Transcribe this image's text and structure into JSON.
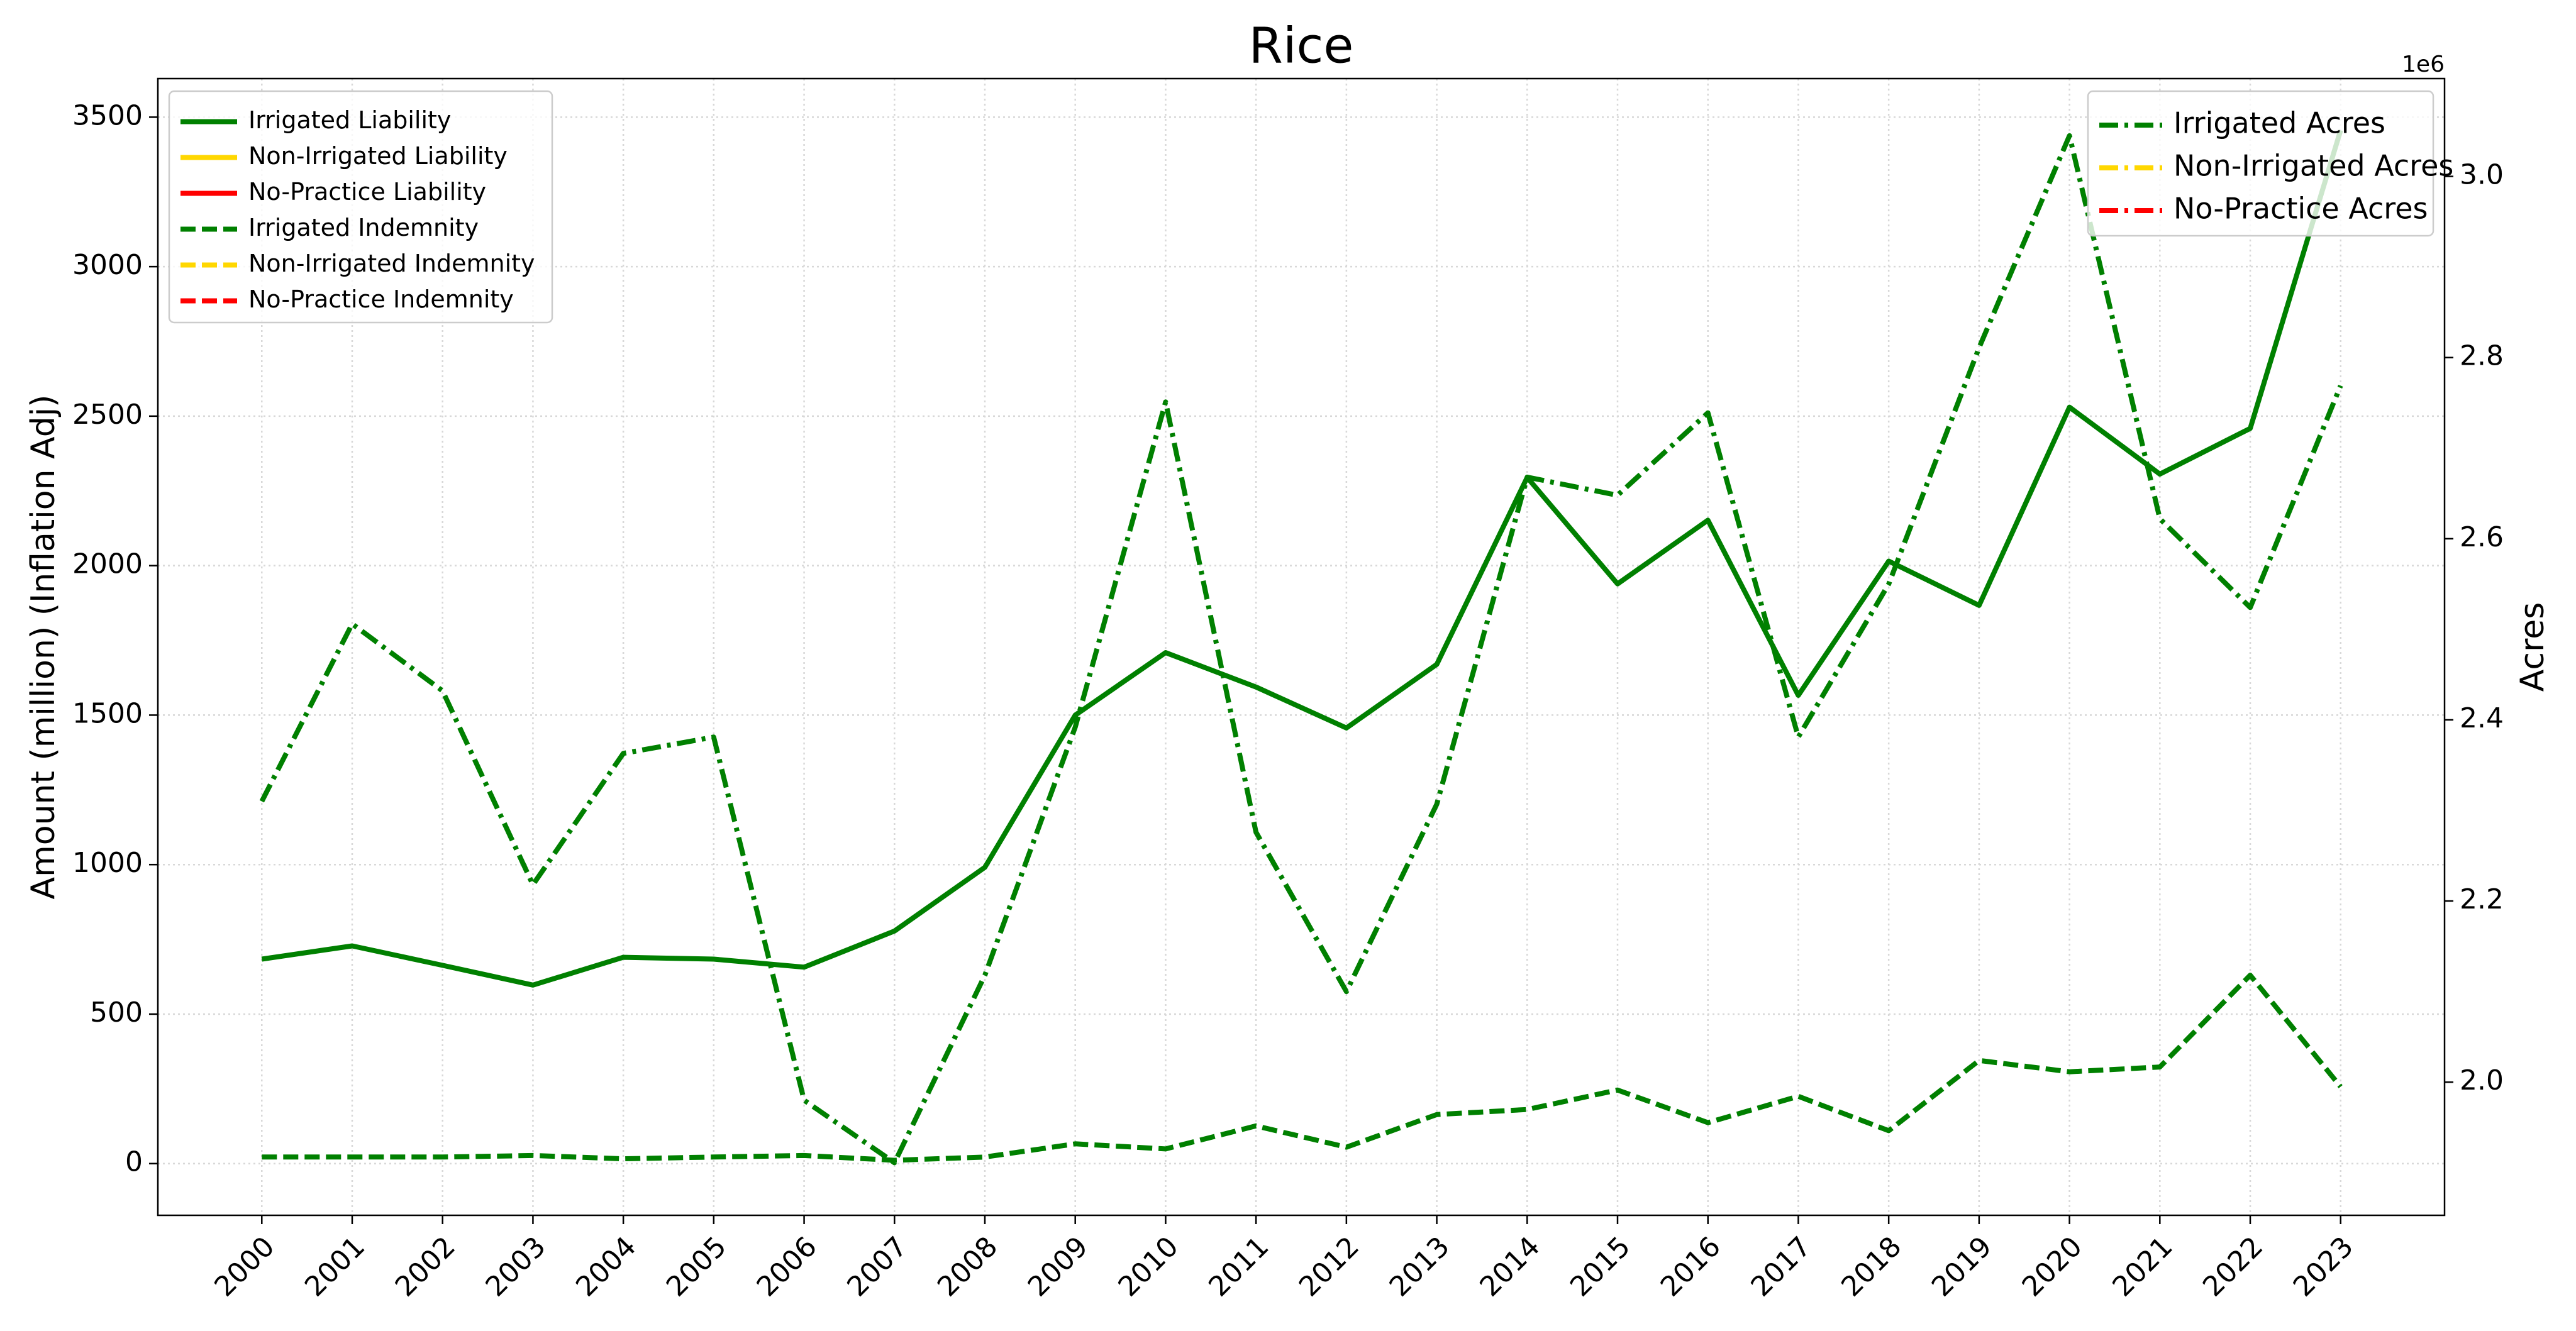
{
  "chart_data": {
    "type": "line",
    "title": "Rice",
    "ylabel": "Amount (million) (Inflation Adj)",
    "y2label": "Acres",
    "y2offset": "1e6",
    "categories": [
      "2000",
      "2001",
      "2002",
      "2003",
      "2004",
      "2005",
      "2006",
      "2007",
      "2008",
      "2009",
      "2010",
      "2011",
      "2012",
      "2013",
      "2014",
      "2015",
      "2016",
      "2017",
      "2018",
      "2019",
      "2020",
      "2021",
      "2022",
      "2023"
    ],
    "series": [
      {
        "name": "Irrigated Liability",
        "color": "#008000",
        "style": "solid",
        "axis": "y",
        "values": [
          684,
          728,
          663,
          597,
          690,
          684,
          657,
          778,
          991,
          1500,
          1709,
          1594,
          1457,
          1670,
          2295,
          1939,
          2152,
          1566,
          2015,
          1867,
          2530,
          2306,
          2459,
          3456
        ]
      },
      {
        "name": "Non-Irrigated Liability",
        "color": "#ffd700",
        "style": "solid",
        "axis": "y",
        "values": [
          null,
          null,
          null,
          null,
          null,
          null,
          null,
          null,
          null,
          null,
          null,
          null,
          null,
          null,
          null,
          null,
          null,
          null,
          null,
          null,
          null,
          null,
          null,
          null
        ]
      },
      {
        "name": "No-Practice Liability",
        "color": "#ff0000",
        "style": "solid",
        "axis": "y",
        "values": [
          null,
          null,
          null,
          null,
          null,
          null,
          null,
          null,
          null,
          null,
          null,
          null,
          null,
          null,
          null,
          null,
          null,
          null,
          null,
          null,
          null,
          null,
          null,
          null
        ]
      },
      {
        "name": "Irrigated Indemnity",
        "color": "#008000",
        "style": "dashed",
        "axis": "y",
        "values": [
          22,
          22,
          22,
          27,
          16,
          22,
          27,
          11,
          22,
          66,
          49,
          126,
          55,
          164,
          181,
          246,
          137,
          225,
          110,
          345,
          307,
          323,
          630,
          257
        ]
      },
      {
        "name": "Non-Irrigated Indemnity",
        "color": "#ffd700",
        "style": "dashed",
        "axis": "y",
        "values": [
          null,
          null,
          null,
          null,
          null,
          null,
          null,
          null,
          null,
          null,
          null,
          null,
          null,
          null,
          null,
          null,
          null,
          null,
          null,
          null,
          null,
          null,
          null,
          null
        ]
      },
      {
        "name": "No-Practice Indemnity",
        "color": "#ff0000",
        "style": "dashed",
        "axis": "y",
        "values": [
          null,
          null,
          null,
          null,
          null,
          null,
          null,
          null,
          null,
          null,
          null,
          null,
          null,
          null,
          null,
          null,
          null,
          null,
          null,
          null,
          null,
          null,
          null,
          null
        ]
      },
      {
        "name": "Irrigated Acres",
        "color": "#008000",
        "style": "dashdot",
        "axis": "y2",
        "values": [
          2310000,
          2506000,
          2432000,
          2218000,
          2363000,
          2381000,
          1980000,
          1911000,
          2118000,
          2392000,
          2751000,
          2276000,
          2100000,
          2307000,
          2668000,
          2648000,
          2739000,
          2381000,
          2550000,
          2811000,
          3045000,
          2622000,
          2524000,
          2769000
        ]
      },
      {
        "name": "Non-Irrigated Acres",
        "color": "#ffd700",
        "style": "dashdot",
        "axis": "y2",
        "values": [
          null,
          null,
          null,
          null,
          null,
          null,
          null,
          null,
          null,
          null,
          null,
          null,
          null,
          null,
          null,
          null,
          null,
          null,
          null,
          null,
          null,
          null,
          null,
          null
        ]
      },
      {
        "name": "No-Practice Acres",
        "color": "#ff0000",
        "style": "dashdot",
        "axis": "y2",
        "values": [
          null,
          null,
          null,
          null,
          null,
          null,
          null,
          null,
          null,
          null,
          null,
          null,
          null,
          null,
          null,
          null,
          null,
          null,
          null,
          null,
          null,
          null,
          null,
          null
        ]
      }
    ],
    "ylim": [
      -173,
      3629
    ],
    "yticks": [
      0,
      500,
      1000,
      1500,
      2000,
      2500,
      3000,
      3500
    ],
    "y2lim": [
      1853000,
      3108000
    ],
    "y2ticks": [
      {
        "value": 2000000,
        "label": "2.0"
      },
      {
        "value": 2200000,
        "label": "2.2"
      },
      {
        "value": 2400000,
        "label": "2.4"
      },
      {
        "value": 2600000,
        "label": "2.6"
      },
      {
        "value": 2800000,
        "label": "2.8"
      },
      {
        "value": 3000000,
        "label": "3.0"
      }
    ],
    "grid": true,
    "legend": "upper left",
    "legend2": "upper right"
  }
}
